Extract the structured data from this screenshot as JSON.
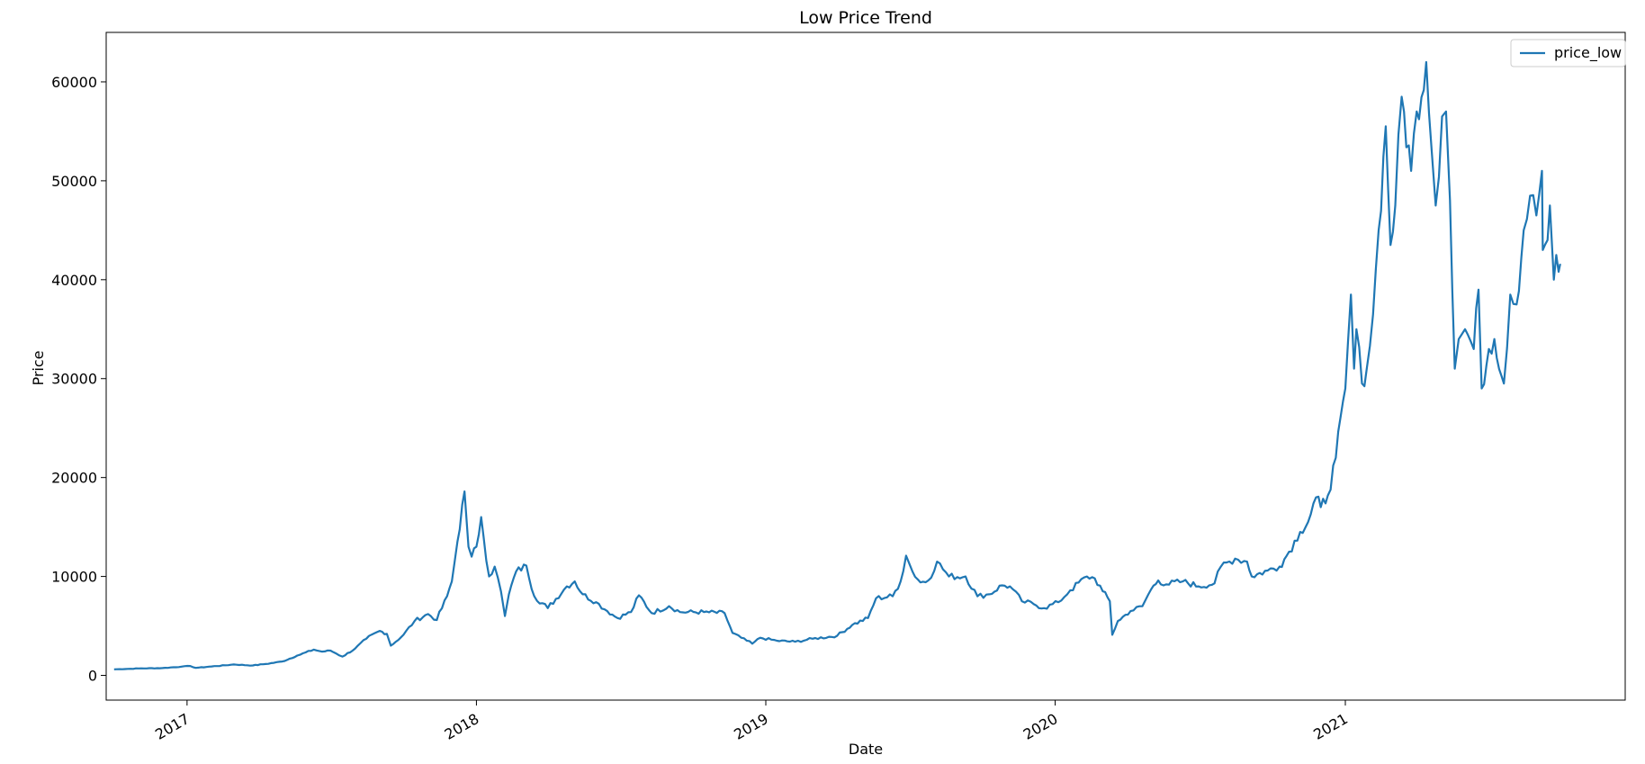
{
  "chart_data": {
    "type": "line",
    "title": "Low Price Trend",
    "xlabel": "Date",
    "ylabel": "Price",
    "xlim": [
      "2016-09-21",
      "2021-12-20"
    ],
    "ylim": [
      -2500,
      65000
    ],
    "x_ticks": [
      {
        "label": "2017",
        "date": "2017-01-01"
      },
      {
        "label": "2018",
        "date": "2018-01-01"
      },
      {
        "label": "2019",
        "date": "2019-01-01"
      },
      {
        "label": "2020",
        "date": "2020-01-01"
      },
      {
        "label": "2021",
        "date": "2021-01-01"
      }
    ],
    "y_ticks": [
      0,
      10000,
      20000,
      30000,
      40000,
      50000,
      60000
    ],
    "grid": false,
    "legend": {
      "position": "top-right",
      "entries": [
        "price_low"
      ]
    },
    "series": [
      {
        "name": "price_low",
        "color": "#1f77b4",
        "points": [
          [
            "2016-10-01",
            610
          ],
          [
            "2016-11-01",
            700
          ],
          [
            "2016-12-01",
            740
          ],
          [
            "2016-12-25",
            880
          ],
          [
            "2017-01-05",
            950
          ],
          [
            "2017-01-12",
            760
          ],
          [
            "2017-02-01",
            900
          ],
          [
            "2017-03-01",
            1100
          ],
          [
            "2017-03-25",
            1000
          ],
          [
            "2017-04-10",
            1150
          ],
          [
            "2017-05-01",
            1400
          ],
          [
            "2017-05-20",
            2000
          ],
          [
            "2017-06-10",
            2600
          ],
          [
            "2017-06-20",
            2400
          ],
          [
            "2017-07-01",
            2500
          ],
          [
            "2017-07-16",
            1900
          ],
          [
            "2017-08-01",
            2700
          ],
          [
            "2017-08-15",
            3700
          ],
          [
            "2017-09-01",
            4500
          ],
          [
            "2017-09-10",
            4200
          ],
          [
            "2017-09-15",
            3000
          ],
          [
            "2017-10-01",
            4100
          ],
          [
            "2017-10-15",
            5500
          ],
          [
            "2017-11-01",
            6200
          ],
          [
            "2017-11-12",
            5600
          ],
          [
            "2017-11-25",
            8000
          ],
          [
            "2017-12-01",
            9500
          ],
          [
            "2017-12-08",
            13500
          ],
          [
            "2017-12-17",
            18600
          ],
          [
            "2017-12-22",
            13000
          ],
          [
            "2017-12-26",
            12000
          ],
          [
            "2018-01-01",
            13000
          ],
          [
            "2018-01-07",
            16000
          ],
          [
            "2018-01-10",
            14000
          ],
          [
            "2018-01-17",
            10000
          ],
          [
            "2018-01-24",
            11000
          ],
          [
            "2018-02-01",
            8500
          ],
          [
            "2018-02-06",
            6000
          ],
          [
            "2018-02-11",
            8200
          ],
          [
            "2018-02-20",
            10500
          ],
          [
            "2018-03-05",
            11100
          ],
          [
            "2018-03-15",
            8000
          ],
          [
            "2018-04-01",
            6800
          ],
          [
            "2018-04-25",
            9000
          ],
          [
            "2018-05-05",
            9500
          ],
          [
            "2018-05-15",
            8200
          ],
          [
            "2018-06-01",
            7400
          ],
          [
            "2018-06-15",
            6500
          ],
          [
            "2018-06-28",
            5800
          ],
          [
            "2018-07-15",
            6400
          ],
          [
            "2018-07-25",
            8100
          ],
          [
            "2018-08-10",
            6300
          ],
          [
            "2018-09-01",
            7000
          ],
          [
            "2018-09-15",
            6400
          ],
          [
            "2018-10-15",
            6400
          ],
          [
            "2018-11-10",
            6300
          ],
          [
            "2018-11-20",
            4300
          ],
          [
            "2018-12-01",
            3800
          ],
          [
            "2018-12-15",
            3200
          ],
          [
            "2018-12-25",
            3800
          ],
          [
            "2019-01-15",
            3500
          ],
          [
            "2019-02-07",
            3400
          ],
          [
            "2019-03-01",
            3700
          ],
          [
            "2019-04-01",
            4000
          ],
          [
            "2019-04-20",
            5100
          ],
          [
            "2019-05-10",
            5800
          ],
          [
            "2019-05-20",
            7800
          ],
          [
            "2019-06-10",
            8000
          ],
          [
            "2019-06-20",
            9500
          ],
          [
            "2019-06-27",
            12100
          ],
          [
            "2019-07-05",
            10500
          ],
          [
            "2019-07-15",
            9400
          ],
          [
            "2019-07-25",
            9600
          ],
          [
            "2019-08-05",
            11500
          ],
          [
            "2019-08-20",
            10000
          ],
          [
            "2019-09-10",
            10000
          ],
          [
            "2019-09-25",
            8000
          ],
          [
            "2019-10-10",
            8200
          ],
          [
            "2019-10-26",
            9100
          ],
          [
            "2019-11-05",
            9000
          ],
          [
            "2019-11-20",
            7500
          ],
          [
            "2019-12-05",
            7200
          ],
          [
            "2019-12-18",
            6800
          ],
          [
            "2020-01-05",
            7400
          ],
          [
            "2020-01-20",
            8600
          ],
          [
            "2020-02-10",
            10000
          ],
          [
            "2020-02-20",
            9800
          ],
          [
            "2020-03-01",
            8500
          ],
          [
            "2020-03-10",
            7500
          ],
          [
            "2020-03-13",
            4100
          ],
          [
            "2020-03-20",
            5500
          ],
          [
            "2020-04-05",
            6500
          ],
          [
            "2020-04-20",
            7000
          ],
          [
            "2020-05-01",
            8700
          ],
          [
            "2020-05-10",
            9600
          ],
          [
            "2020-05-20",
            9200
          ],
          [
            "2020-06-10",
            9500
          ],
          [
            "2020-06-30",
            9000
          ],
          [
            "2020-07-20",
            9300
          ],
          [
            "2020-07-28",
            11000
          ],
          [
            "2020-08-15",
            11800
          ],
          [
            "2020-08-30",
            11500
          ],
          [
            "2020-09-05",
            10000
          ],
          [
            "2020-09-25",
            10600
          ],
          [
            "2020-10-10",
            11000
          ],
          [
            "2020-10-22",
            12500
          ],
          [
            "2020-11-05",
            14500
          ],
          [
            "2020-11-15",
            15500
          ],
          [
            "2020-11-25",
            18000
          ],
          [
            "2020-12-01",
            17000
          ],
          [
            "2020-12-10",
            18200
          ],
          [
            "2020-12-20",
            22000
          ],
          [
            "2021-01-01",
            29000
          ],
          [
            "2021-01-08",
            38500
          ],
          [
            "2021-01-12",
            31000
          ],
          [
            "2021-01-15",
            35000
          ],
          [
            "2021-01-22",
            29500
          ],
          [
            "2021-01-28",
            31000
          ],
          [
            "2021-02-05",
            36500
          ],
          [
            "2021-02-12",
            45000
          ],
          [
            "2021-02-21",
            55500
          ],
          [
            "2021-02-27",
            43500
          ],
          [
            "2021-03-05",
            47500
          ],
          [
            "2021-03-13",
            58500
          ],
          [
            "2021-03-25",
            51000
          ],
          [
            "2021-04-01",
            57000
          ],
          [
            "2021-04-13",
            62000
          ],
          [
            "2021-04-20",
            53000
          ],
          [
            "2021-04-25",
            47500
          ],
          [
            "2021-05-03",
            56500
          ],
          [
            "2021-05-08",
            57000
          ],
          [
            "2021-05-13",
            48000
          ],
          [
            "2021-05-19",
            31000
          ],
          [
            "2021-05-24",
            34000
          ],
          [
            "2021-06-01",
            35000
          ],
          [
            "2021-06-12",
            33000
          ],
          [
            "2021-06-18",
            39000
          ],
          [
            "2021-06-22",
            29000
          ],
          [
            "2021-07-01",
            33000
          ],
          [
            "2021-07-08",
            34000
          ],
          [
            "2021-07-20",
            29500
          ],
          [
            "2021-07-28",
            38500
          ],
          [
            "2021-08-05",
            37500
          ],
          [
            "2021-08-14",
            45000
          ],
          [
            "2021-08-22",
            48500
          ],
          [
            "2021-08-30",
            46500
          ],
          [
            "2021-09-06",
            51000
          ],
          [
            "2021-09-07",
            43000
          ],
          [
            "2021-09-13",
            44000
          ],
          [
            "2021-09-16",
            47500
          ],
          [
            "2021-09-21",
            40000
          ],
          [
            "2021-09-24",
            42500
          ],
          [
            "2021-09-27",
            40800
          ],
          [
            "2021-09-29",
            41600
          ]
        ]
      }
    ]
  }
}
